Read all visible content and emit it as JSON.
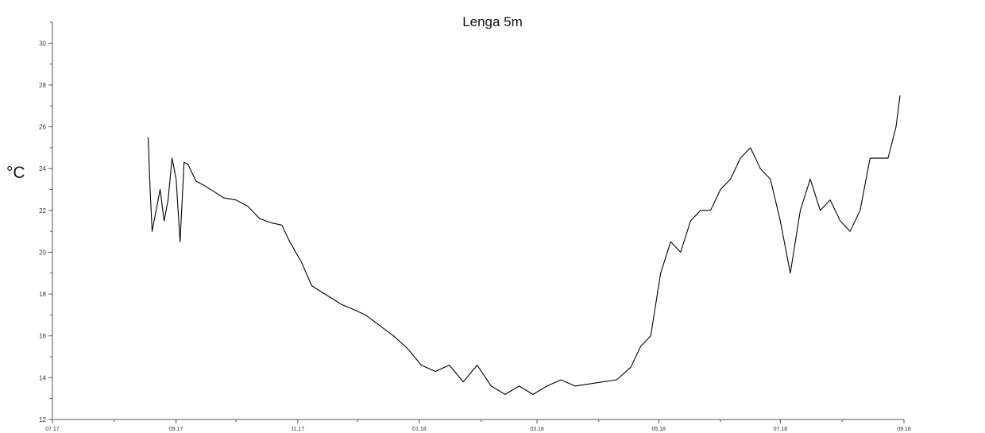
{
  "chart_data": {
    "type": "line",
    "title": "Lenga 5m",
    "xlabel": "",
    "ylabel": "°C",
    "x_tick_labels": [
      "07.17",
      "09.17",
      "11.17",
      "01.18",
      "03.18",
      "05.18",
      "07.18",
      "09.18"
    ],
    "y_ticks": [
      12,
      14,
      16,
      18,
      20,
      22,
      24,
      26,
      28,
      30
    ],
    "xlim": [
      "2017-07-01",
      "2018-09-01"
    ],
    "ylim": [
      12,
      31
    ],
    "grid": false,
    "series": [
      {
        "color": "#000000",
        "x": [
          "2017-08-18",
          "2017-08-19",
          "2017-08-20",
          "2017-08-22",
          "2017-08-24",
          "2017-08-26",
          "2017-08-28",
          "2017-08-30",
          "2017-09-01",
          "2017-09-03",
          "2017-09-05",
          "2017-09-07",
          "2017-09-09",
          "2017-09-11",
          "2017-09-15",
          "2017-09-20",
          "2017-09-25",
          "2017-10-01",
          "2017-10-07",
          "2017-10-13",
          "2017-10-19",
          "2017-10-24",
          "2017-10-28",
          "2017-11-03",
          "2017-11-08",
          "2017-11-13",
          "2017-11-18",
          "2017-11-23",
          "2017-11-28",
          "2017-12-05",
          "2017-12-12",
          "2017-12-19",
          "2017-12-26",
          "2018-01-02",
          "2018-01-09",
          "2018-01-16",
          "2018-01-23",
          "2018-01-30",
          "2018-02-06",
          "2018-02-13",
          "2018-02-20",
          "2018-02-27",
          "2018-03-06",
          "2018-03-13",
          "2018-03-20",
          "2018-03-27",
          "2018-04-03",
          "2018-04-10",
          "2018-04-17",
          "2018-04-22",
          "2018-04-27",
          "2018-05-02",
          "2018-05-07",
          "2018-05-12",
          "2018-05-17",
          "2018-05-22",
          "2018-05-27",
          "2018-06-01",
          "2018-06-06",
          "2018-06-11",
          "2018-06-16",
          "2018-06-21",
          "2018-06-26",
          "2018-07-01",
          "2018-07-06",
          "2018-07-11",
          "2018-07-16",
          "2018-07-21",
          "2018-07-26",
          "2018-07-31",
          "2018-08-05",
          "2018-08-10",
          "2018-08-15",
          "2018-08-20",
          "2018-08-24",
          "2018-08-28",
          "2018-08-30"
        ],
        "y": [
          25.5,
          23.0,
          21.0,
          22.0,
          23.0,
          21.5,
          22.5,
          24.5,
          23.5,
          20.5,
          24.3,
          24.2,
          23.8,
          23.4,
          23.2,
          22.9,
          22.6,
          22.5,
          22.2,
          21.6,
          21.4,
          21.3,
          20.5,
          19.5,
          18.4,
          18.1,
          17.8,
          17.5,
          17.3,
          17.0,
          16.5,
          16.0,
          15.4,
          14.6,
          14.3,
          14.6,
          13.8,
          14.6,
          13.6,
          13.2,
          13.6,
          13.2,
          13.6,
          13.9,
          13.6,
          13.7,
          13.8,
          13.9,
          14.5,
          15.5,
          16.0,
          19.0,
          20.5,
          20.0,
          21.5,
          22.0,
          22.0,
          23.0,
          23.5,
          24.5,
          25.0,
          24.0,
          23.5,
          21.5,
          19.0,
          22.0,
          23.5,
          22.0,
          22.5,
          21.5,
          21.0,
          22.0,
          24.5,
          24.5,
          24.5,
          26.0,
          27.5
        ]
      }
    ]
  }
}
